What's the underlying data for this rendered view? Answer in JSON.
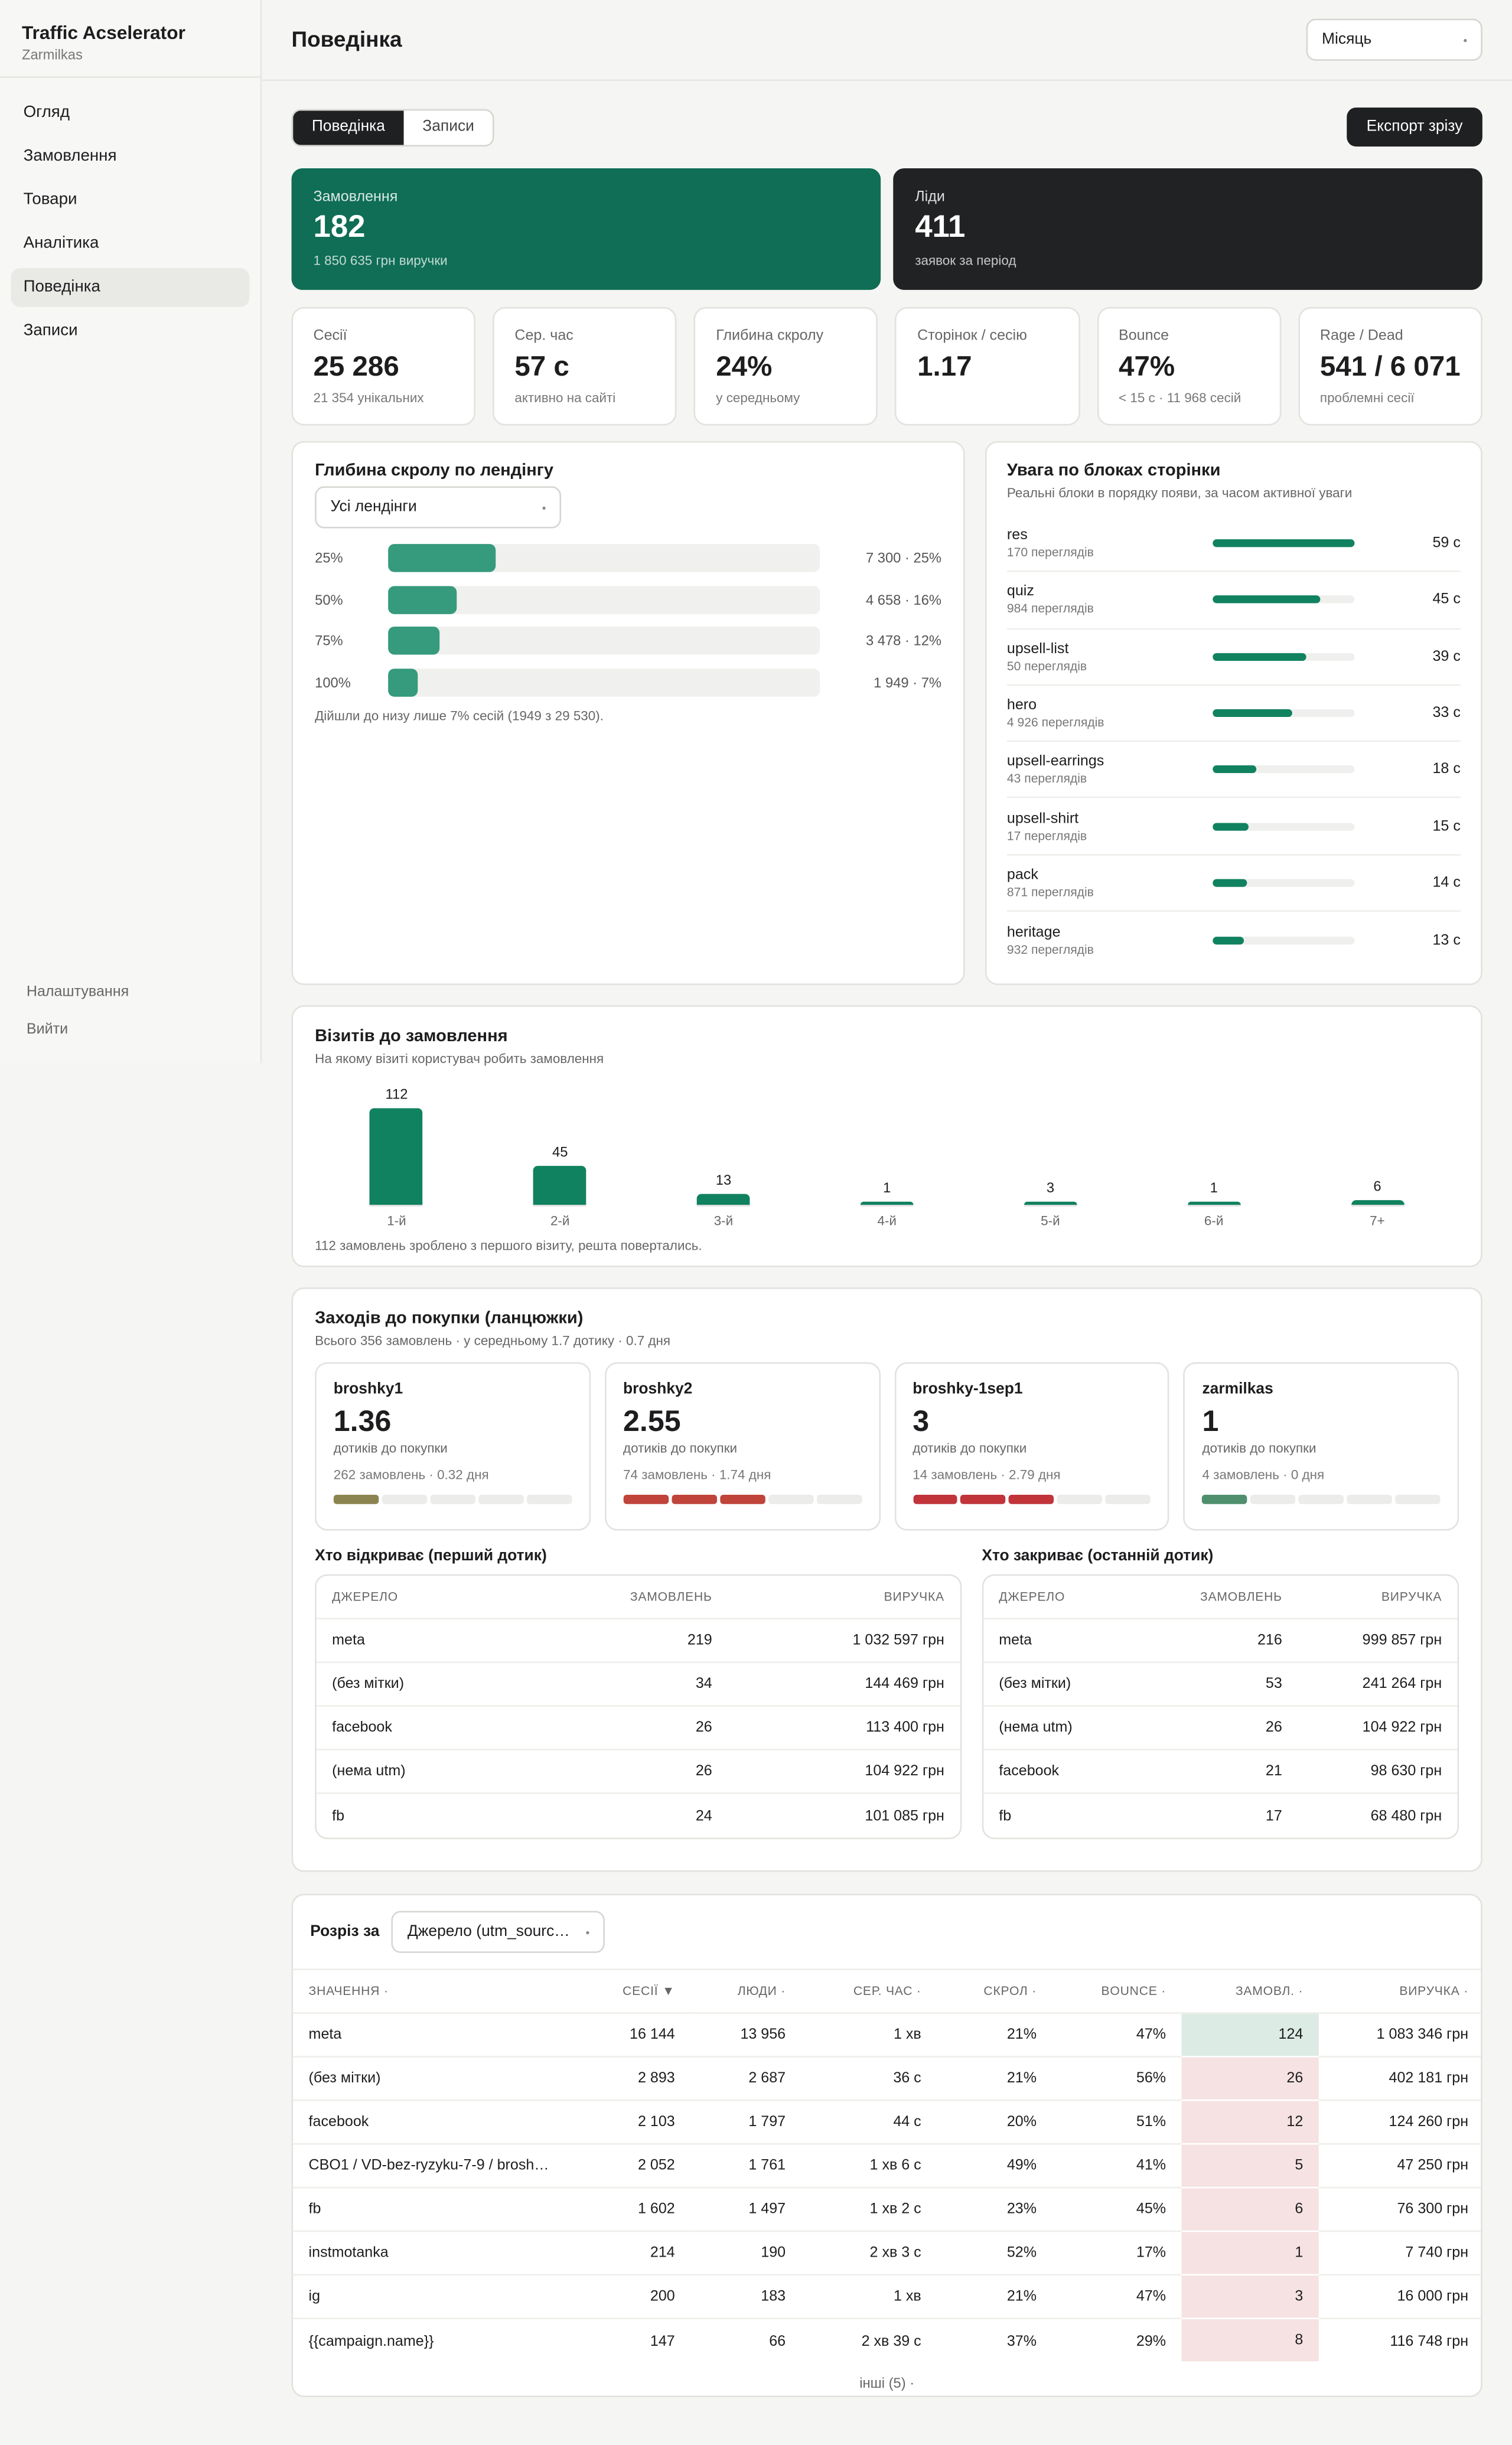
{
  "sidebar": {
    "brand": "Traffic Acselerator",
    "account": "Zarmilkas",
    "nav": [
      "Огляд",
      "Замовлення",
      "Товари",
      "Аналітика",
      "Поведінка",
      "Записи"
    ],
    "footer_nav": [
      "Налаштування",
      "Вийти"
    ]
  },
  "header": {
    "title": "Поведінка",
    "period": "Місяць"
  },
  "tabs": [
    "Поведінка",
    "Записи"
  ],
  "export": "Експорт зрізу",
  "hero": [
    {
      "label": "Замовлення",
      "value": "182",
      "sub": "1 850 635 грн виручки"
    },
    {
      "label": "Ліди",
      "value": "411",
      "sub": "заявок за період"
    }
  ],
  "kpis": [
    {
      "label": "Сесії",
      "value": "25 286",
      "sub": "21 354 унікальних"
    },
    {
      "label": "Сер. час",
      "value": "57 с",
      "sub": "активно на сайті"
    },
    {
      "label": "Глибина скролу",
      "value": "24%",
      "sub": "у середньому"
    },
    {
      "label": "Сторінок / сесію",
      "value": "1.17"
    },
    {
      "label": "Bounce",
      "value": "47%",
      "sub": "< 15 с · 11 968 сесій"
    },
    {
      "label": "Rage / Dead",
      "value": "541 / 6 071",
      "sub": "проблемні сесії"
    }
  ],
  "scroll": {
    "title": "Глибина скролу по лендінгу",
    "filter": "Усі лендінги",
    "rows": [
      {
        "label": "25%",
        "value": 25,
        "value_label": "7 300 · 25%"
      },
      {
        "label": "50%",
        "value": 16,
        "value_label": "4 658 · 16%"
      },
      {
        "label": "75%",
        "value": 12,
        "value_label": "3 478 · 12%"
      },
      {
        "label": "100%",
        "value": 7,
        "value_label": "1 949 · 7%"
      }
    ],
    "note": "Дійшли до низу лише 7% сесій (1949 з 29 530)."
  },
  "attention": {
    "title": "Увага по блоках сторінки",
    "subtitle": "Реальні блоки в порядку появи, за часом активної уваги",
    "rows": [
      {
        "name": "res",
        "views": "170 переглядів",
        "value": 59,
        "value_label": "59 с"
      },
      {
        "name": "quiz",
        "views": "984 переглядів",
        "value": 45,
        "value_label": "45 с"
      },
      {
        "name": "upsell-list",
        "views": "50 переглядів",
        "value": 39,
        "value_label": "39 с"
      },
      {
        "name": "hero",
        "views": "4 926 переглядів",
        "value": 33,
        "value_label": "33 с"
      },
      {
        "name": "upsell-earrings",
        "views": "43 переглядів",
        "value": 18,
        "value_label": "18 с"
      },
      {
        "name": "upsell-shirt",
        "views": "17 переглядів",
        "value": 15,
        "value_label": "15 с"
      },
      {
        "name": "pack",
        "views": "871 переглядів",
        "value": 14,
        "value_label": "14 с"
      },
      {
        "name": "heritage",
        "views": "932 переглядів",
        "value": 13,
        "value_label": "13 с"
      }
    ]
  },
  "visits": {
    "type": "bar",
    "title": "Візитів до замовлення",
    "subtitle": "На якому візиті користувач робить замовлення",
    "categories": [
      "1-й",
      "2-й",
      "3-й",
      "4-й",
      "5-й",
      "6-й",
      "7+"
    ],
    "values": [
      112,
      45,
      13,
      1,
      3,
      1,
      6
    ],
    "color": "#11825f",
    "note": "112 замовлень зроблено з першого візиту, решта повертались."
  },
  "chains": {
    "title": "Заходів до покупки (ланцюжки)",
    "subtitle": "Всього 356 замовлень · у середньому 1.7 дотику · 0.7 дня",
    "cards": [
      {
        "name": "broshky1",
        "value": 1.36,
        "caption": "дотиків до покупки",
        "meta": "262 замовлень · 0.32 дня",
        "color": "#8c8450"
      },
      {
        "name": "broshky2",
        "value": 2.55,
        "caption": "дотиків до покупки",
        "meta": "74 замовлень · 1.74 дня",
        "color": "#c0443a"
      },
      {
        "name": "broshky-1sep1",
        "value": 3,
        "caption": "дотиків до покупки",
        "meta": "14 замовлень · 2.79 дня",
        "color": "#c0343a"
      },
      {
        "name": "zarmilkas",
        "value": 1,
        "caption": "дотиків до покупки",
        "meta": "4 замовлень · 0 дня",
        "color": "#4f8f6e"
      }
    ],
    "first": {
      "title": "Хто відкриває (перший дотик)",
      "columns": [
        "ДЖЕРЕЛО",
        "ЗАМОВЛЕНЬ",
        "ВИРУЧКА"
      ],
      "rows": [
        [
          "meta",
          "219",
          "1 032 597 грн"
        ],
        [
          "(без мітки)",
          "34",
          "144 469 грн"
        ],
        [
          "facebook",
          "26",
          "113 400 грн"
        ],
        [
          "(нема utm)",
          "26",
          "104 922 грн"
        ],
        [
          "fb",
          "24",
          "101 085 грн"
        ]
      ]
    },
    "last": {
      "title": "Хто закриває (останній дотик)",
      "columns": [
        "ДЖЕРЕЛО",
        "ЗАМОВЛЕНЬ",
        "ВИРУЧКА"
      ],
      "rows": [
        [
          "meta",
          "216",
          "999 857 грн"
        ],
        [
          "(без мітки)",
          "53",
          "241 264 грн"
        ],
        [
          "(нема utm)",
          "26",
          "104 922 грн"
        ],
        [
          "facebook",
          "21",
          "98 630 грн"
        ],
        [
          "fb",
          "17",
          "68 480 грн"
        ]
      ]
    }
  },
  "breakdown": {
    "label": "Розріз за",
    "filter": "Джерело (utm_sourc…",
    "columns": [
      "ЗНАЧЕННЯ ·",
      "СЕСІЇ ▼",
      "ЛЮДИ ·",
      "СЕР. ЧАС ·",
      "СКРОЛ ·",
      "BOUNCE ·",
      "ЗАМОВЛ. ·",
      "ВИРУЧКА ·"
    ],
    "rows": [
      [
        "meta",
        "16 144",
        "13 956",
        "1 хв",
        "21%",
        "47%",
        "124",
        "1 083 346 грн"
      ],
      [
        "(без мітки)",
        "2 893",
        "2 687",
        "36 с",
        "21%",
        "56%",
        "26",
        "402 181 грн"
      ],
      [
        "facebook",
        "2 103",
        "1 797",
        "44 с",
        "20%",
        "51%",
        "12",
        "124 260 грн"
      ],
      [
        "CBO1 / VD-bez-ryzyku-7-9 / brosh…",
        "2 052",
        "1 761",
        "1 хв 6 с",
        "49%",
        "41%",
        "5",
        "47 250 грн"
      ],
      [
        "fb",
        "1 602",
        "1 497",
        "1 хв 2 с",
        "23%",
        "45%",
        "6",
        "76 300 грн"
      ],
      [
        "instmotanka",
        "214",
        "190",
        "2 хв 3 с",
        "52%",
        "17%",
        "1",
        "7 740 грн"
      ],
      [
        "ig",
        "200",
        "183",
        "1 хв",
        "21%",
        "47%",
        "3",
        "16 000 грн"
      ],
      [
        "{{campaign.name}}",
        "147",
        "66",
        "2 хв 39 с",
        "37%",
        "29%",
        "8",
        "116 748 грн"
      ]
    ],
    "more": "інші (5) ·"
  }
}
